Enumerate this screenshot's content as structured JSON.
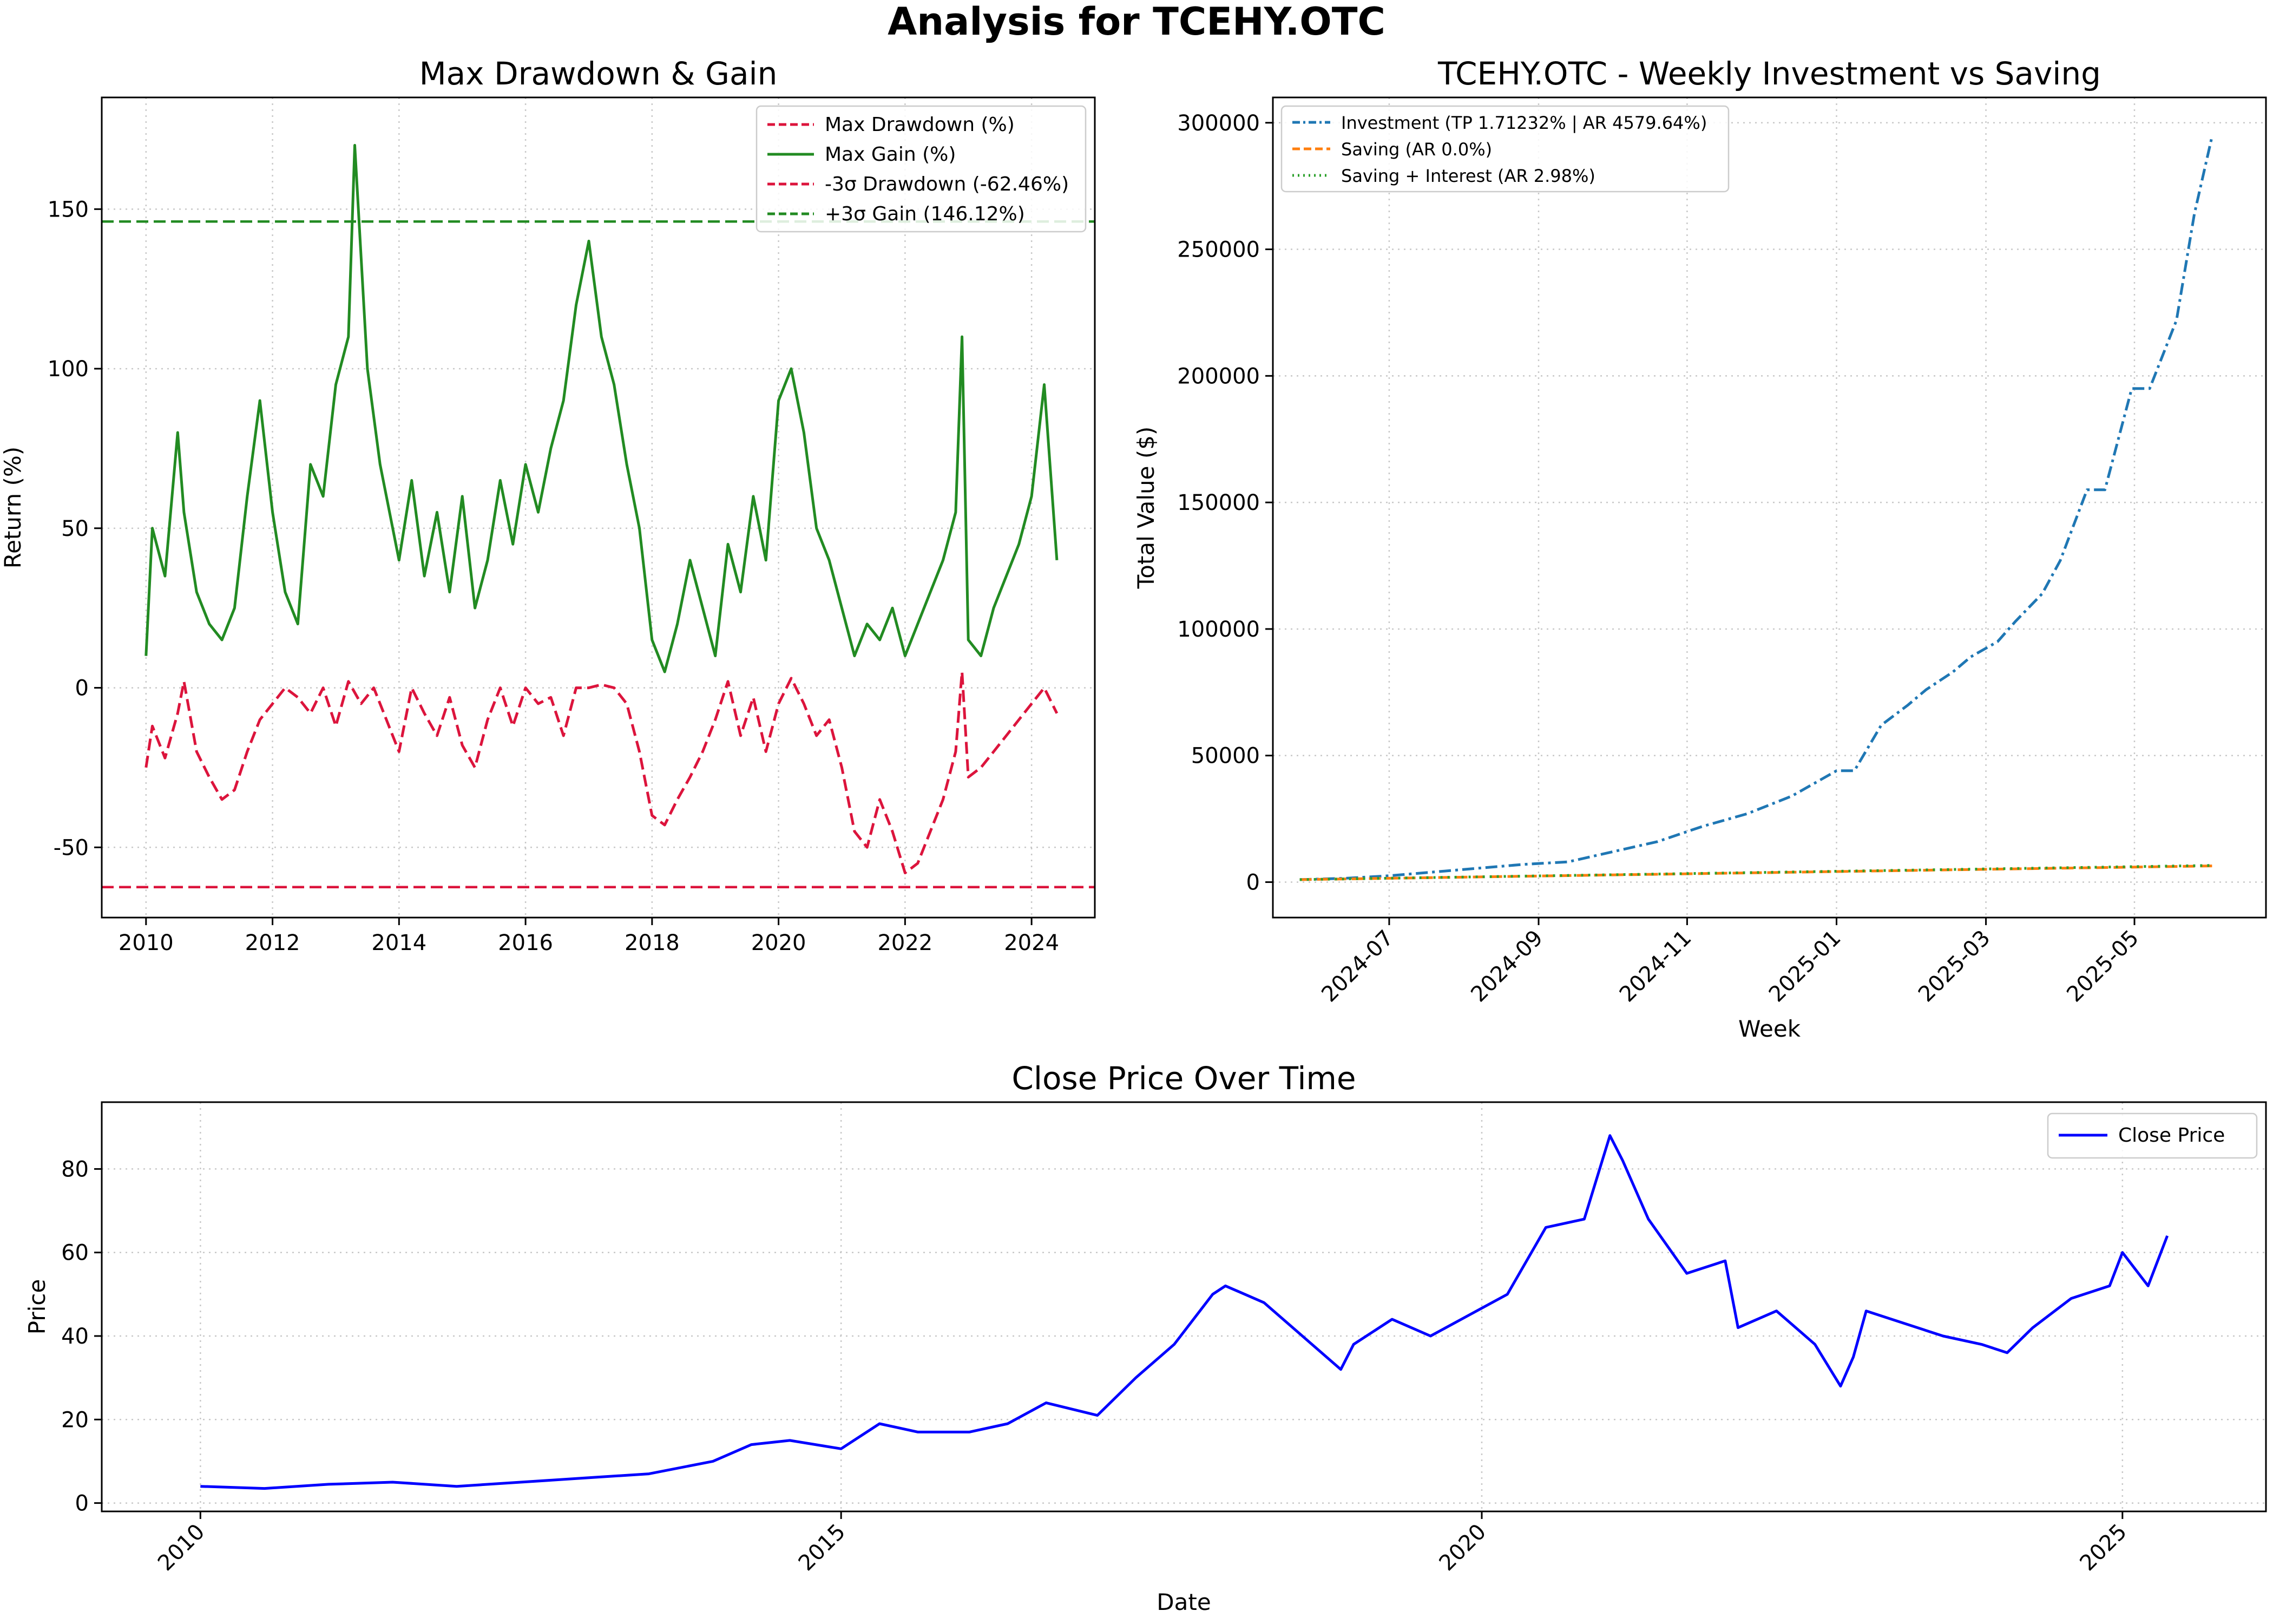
{
  "figure": {
    "title": "Analysis for TCEHY.OTC"
  },
  "chart_data": [
    {
      "id": "drawdown",
      "type": "line",
      "title": "Max Drawdown & Gain",
      "xlabel": "",
      "ylabel": "Return (%)",
      "xlim": [
        2009.3,
        2025.0
      ],
      "ylim": [
        -72,
        185
      ],
      "xticks": [
        2010,
        2012,
        2014,
        2016,
        2018,
        2020,
        2022,
        2024
      ],
      "yticks": [
        -50,
        0,
        50,
        100,
        150
      ],
      "legend_position": "top-right",
      "series": [
        {
          "name": "Max Drawdown (%)",
          "color": "#dc143c",
          "style": "dashed",
          "x": [
            2010.0,
            2010.1,
            2010.3,
            2010.5,
            2010.6,
            2010.8,
            2011.0,
            2011.2,
            2011.4,
            2011.6,
            2011.8,
            2012.0,
            2012.2,
            2012.4,
            2012.6,
            2012.8,
            2013.0,
            2013.2,
            2013.4,
            2013.6,
            2013.8,
            2014.0,
            2014.2,
            2014.4,
            2014.6,
            2014.8,
            2015.0,
            2015.2,
            2015.4,
            2015.6,
            2015.8,
            2016.0,
            2016.2,
            2016.4,
            2016.6,
            2016.8,
            2017.0,
            2017.2,
            2017.4,
            2017.6,
            2017.8,
            2018.0,
            2018.2,
            2018.4,
            2018.6,
            2018.8,
            2019.0,
            2019.2,
            2019.4,
            2019.6,
            2019.8,
            2020.0,
            2020.2,
            2020.4,
            2020.6,
            2020.8,
            2021.0,
            2021.2,
            2021.4,
            2021.6,
            2021.8,
            2022.0,
            2022.2,
            2022.4,
            2022.6,
            2022.8,
            2022.9,
            2023.0,
            2023.2,
            2023.4,
            2023.6,
            2023.8,
            2024.0,
            2024.2,
            2024.4
          ],
          "y": [
            -25,
            -12,
            -22,
            -8,
            2,
            -20,
            -28,
            -35,
            -32,
            -20,
            -10,
            -5,
            0,
            -3,
            -8,
            0,
            -12,
            2,
            -5,
            0,
            -10,
            -20,
            0,
            -8,
            -15,
            -3,
            -18,
            -25,
            -10,
            0,
            -12,
            0,
            -5,
            -3,
            -15,
            0,
            0,
            1,
            0,
            -5,
            -20,
            -40,
            -43,
            -35,
            -28,
            -20,
            -10,
            2,
            -15,
            -3,
            -20,
            -5,
            3,
            -5,
            -15,
            -10,
            -25,
            -45,
            -50,
            -35,
            -45,
            -58,
            -55,
            -45,
            -35,
            -20,
            5,
            -28,
            -25,
            -20,
            -15,
            -10,
            -5,
            0,
            -8
          ]
        },
        {
          "name": "Max Gain (%)",
          "color": "#228b22",
          "style": "solid",
          "x": [
            2010.0,
            2010.1,
            2010.3,
            2010.5,
            2010.6,
            2010.8,
            2011.0,
            2011.2,
            2011.4,
            2011.6,
            2011.8,
            2012.0,
            2012.2,
            2012.4,
            2012.6,
            2012.8,
            2013.0,
            2013.2,
            2013.3,
            2013.5,
            2013.7,
            2014.0,
            2014.2,
            2014.4,
            2014.6,
            2014.8,
            2015.0,
            2015.2,
            2015.4,
            2015.6,
            2015.8,
            2016.0,
            2016.2,
            2016.4,
            2016.6,
            2016.8,
            2017.0,
            2017.2,
            2017.4,
            2017.6,
            2017.8,
            2018.0,
            2018.2,
            2018.4,
            2018.6,
            2018.8,
            2019.0,
            2019.2,
            2019.4,
            2019.6,
            2019.8,
            2020.0,
            2020.2,
            2020.4,
            2020.6,
            2020.8,
            2021.0,
            2021.2,
            2021.4,
            2021.6,
            2021.8,
            2022.0,
            2022.2,
            2022.4,
            2022.6,
            2022.8,
            2022.9,
            2023.0,
            2023.2,
            2023.4,
            2023.6,
            2023.8,
            2024.0,
            2024.2,
            2024.4
          ],
          "y": [
            10,
            50,
            35,
            80,
            55,
            30,
            20,
            15,
            25,
            60,
            90,
            55,
            30,
            20,
            70,
            60,
            95,
            110,
            170,
            100,
            70,
            40,
            65,
            35,
            55,
            30,
            60,
            25,
            40,
            65,
            45,
            70,
            55,
            75,
            90,
            120,
            140,
            110,
            95,
            70,
            50,
            15,
            5,
            20,
            40,
            25,
            10,
            45,
            30,
            60,
            40,
            90,
            100,
            80,
            50,
            40,
            25,
            10,
            20,
            15,
            25,
            10,
            20,
            30,
            40,
            55,
            110,
            15,
            10,
            25,
            35,
            45,
            60,
            95,
            40
          ]
        }
      ],
      "reference_lines": [
        {
          "name": "-3σ Drawdown (-62.46%)",
          "value": -62.46,
          "color": "#dc143c",
          "style": "dashed"
        },
        {
          "name": "+3σ Gain (146.12%)",
          "value": 146.12,
          "color": "#228b22",
          "style": "dashed"
        }
      ]
    },
    {
      "id": "investment",
      "type": "line",
      "title": "TCEHY.OTC - Weekly Investment vs Saving",
      "xlabel": "Week",
      "ylabel": "Total Value ($)",
      "xlim": [
        2024.37,
        2025.48
      ],
      "ylim": [
        -14000,
        310000
      ],
      "xticks": [
        2024.5,
        2024.667,
        2024.833,
        2025.0,
        2025.167,
        2025.333
      ],
      "xtick_labels": [
        "2024-07",
        "2024-09",
        "2024-11",
        "2025-01",
        "2025-03",
        "2025-05"
      ],
      "yticks": [
        0,
        50000,
        100000,
        150000,
        200000,
        250000,
        300000
      ],
      "legend_position": "top-left",
      "series": [
        {
          "name": "Investment (TP 1.71232% | AR 4579.64%)",
          "color": "#1f77b4",
          "style": "dashdot",
          "x": [
            2024.4,
            2024.45,
            2024.5,
            2024.55,
            2024.6,
            2024.65,
            2024.7,
            2024.75,
            2024.8,
            2024.85,
            2024.9,
            2024.95,
            2025.0,
            2025.02,
            2025.05,
            2025.08,
            2025.1,
            2025.13,
            2025.15,
            2025.18,
            2025.2,
            2025.23,
            2025.25,
            2025.28,
            2025.3,
            2025.33,
            2025.35,
            2025.38,
            2025.4,
            2025.42
          ],
          "y": [
            1000,
            1500,
            2500,
            4000,
            5500,
            7000,
            8000,
            12000,
            16000,
            22000,
            27000,
            34000,
            44000,
            44000,
            62000,
            70000,
            76000,
            83000,
            89000,
            95000,
            103000,
            114000,
            127000,
            155000,
            155000,
            195000,
            195000,
            222000,
            264000,
            295000
          ]
        },
        {
          "name": "Saving (AR 0.0%)",
          "color": "#ff7f0e",
          "style": "dashed",
          "x": [
            2024.4,
            2025.42
          ],
          "y": [
            1000,
            6400
          ]
        },
        {
          "name": "Saving + Interest (AR 2.98%)",
          "color": "#2ca02c",
          "style": "dotted",
          "x": [
            2024.4,
            2025.42
          ],
          "y": [
            1000,
            6600
          ]
        }
      ]
    },
    {
      "id": "close",
      "type": "line",
      "title": "Close Price Over Time",
      "xlabel": "Date",
      "ylabel": "Price",
      "xlim": [
        2009.23,
        2026.12
      ],
      "ylim": [
        -2,
        96
      ],
      "xticks": [
        2010,
        2015,
        2020,
        2025
      ],
      "yticks": [
        0,
        20,
        40,
        60,
        80
      ],
      "legend_position": "top-right",
      "series": [
        {
          "name": "Close Price",
          "color": "#0000ff",
          "style": "solid",
          "x": [
            2010.0,
            2010.5,
            2011.0,
            2011.5,
            2012.0,
            2012.5,
            2013.0,
            2013.5,
            2014.0,
            2014.3,
            2014.6,
            2015.0,
            2015.3,
            2015.6,
            2016.0,
            2016.3,
            2016.6,
            2017.0,
            2017.3,
            2017.6,
            2017.9,
            2018.0,
            2018.3,
            2018.6,
            2018.9,
            2019.0,
            2019.3,
            2019.6,
            2019.9,
            2020.2,
            2020.5,
            2020.8,
            2021.0,
            2021.1,
            2021.3,
            2021.6,
            2021.9,
            2022.0,
            2022.3,
            2022.6,
            2022.8,
            2022.9,
            2023.0,
            2023.3,
            2023.6,
            2023.9,
            2024.1,
            2024.3,
            2024.6,
            2024.9,
            2025.0,
            2025.2,
            2025.35
          ],
          "y": [
            4,
            3.5,
            4.5,
            5,
            4,
            5,
            6,
            7,
            10,
            14,
            15,
            13,
            19,
            17,
            17,
            19,
            24,
            21,
            30,
            38,
            50,
            52,
            48,
            40,
            32,
            38,
            44,
            40,
            45,
            50,
            66,
            68,
            88,
            82,
            68,
            55,
            58,
            42,
            46,
            38,
            28,
            35,
            46,
            43,
            40,
            38,
            36,
            42,
            49,
            52,
            60,
            52,
            64
          ]
        }
      ]
    }
  ]
}
